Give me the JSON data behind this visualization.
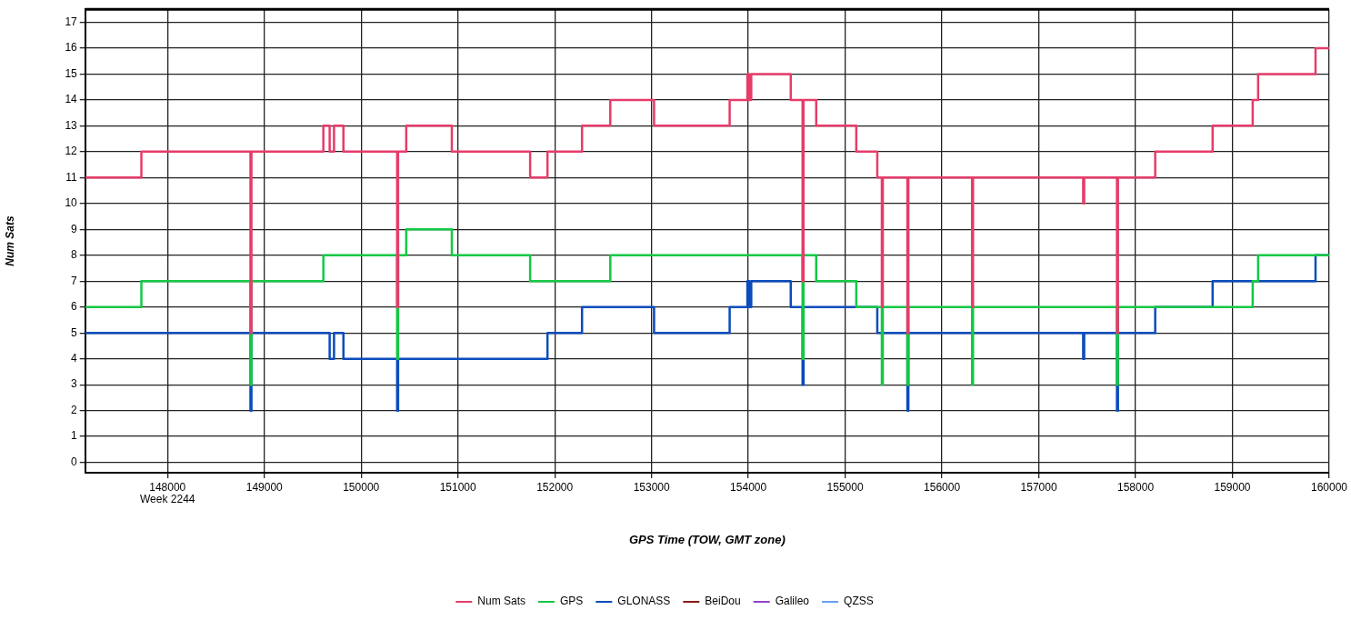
{
  "chart_data": {
    "type": "step",
    "ylabel": "Num Sats",
    "xlabel": "GPS Time (TOW, GMT zone)",
    "annotations": [
      "Week 2244"
    ],
    "xlim": [
      147150,
      160000
    ],
    "xticks": [
      148000,
      149000,
      150000,
      151000,
      152000,
      153000,
      154000,
      155000,
      156000,
      157000,
      158000,
      159000,
      160000
    ],
    "ylim": [
      -0.4,
      17.5
    ],
    "yticks": [
      0,
      1,
      2,
      3,
      4,
      5,
      6,
      7,
      8,
      9,
      10,
      11,
      12,
      13,
      14,
      15,
      16,
      17
    ],
    "grid": true,
    "legend": "bottom",
    "series": [
      {
        "name": "Num Sats",
        "color": "#e63c6a",
        "x": [
          147150,
          147730,
          148857,
          148867,
          149610,
          149675,
          149720,
          149817,
          150372,
          150382,
          150466,
          150937,
          151746,
          151925,
          152282,
          152574,
          153026,
          153807,
          153990,
          154010,
          154030,
          154438,
          154560,
          154570,
          154701,
          155115,
          155332,
          155379,
          155389,
          155643,
          155653,
          156311,
          156321,
          157459,
          157469,
          157808,
          157818,
          158203,
          158796,
          159210,
          159266,
          159859,
          160000
        ],
        "values": [
          11,
          12,
          5,
          12,
          13,
          12,
          13,
          12,
          6,
          12,
          13,
          12,
          11,
          12,
          13,
          14,
          13,
          14,
          15,
          14,
          15,
          14,
          7,
          14,
          13,
          12,
          11,
          6,
          11,
          5,
          11,
          6,
          11,
          10,
          11,
          5,
          11,
          12,
          13,
          14,
          15,
          16,
          16
        ]
      },
      {
        "name": "GPS",
        "color": "#14c846",
        "x": [
          147150,
          147730,
          148857,
          148867,
          149610,
          150372,
          150382,
          150466,
          150937,
          151746,
          152574,
          154560,
          154570,
          154701,
          155115,
          155379,
          155389,
          155643,
          155653,
          156311,
          156321,
          157808,
          157818,
          159210,
          159266,
          160000
        ],
        "values": [
          6,
          7,
          3,
          7,
          8,
          4,
          8,
          9,
          8,
          7,
          8,
          4,
          8,
          7,
          6,
          3,
          6,
          3,
          6,
          3,
          6,
          3,
          6,
          7,
          8,
          8
        ]
      },
      {
        "name": "GLONASS",
        "color": "#0a4cbc",
        "x": [
          147150,
          148857,
          148867,
          149675,
          149720,
          149817,
          150372,
          150382,
          151925,
          152282,
          153026,
          153807,
          153990,
          154010,
          154030,
          154438,
          154560,
          154570,
          155332,
          155643,
          155653,
          157459,
          157469,
          157808,
          157818,
          158203,
          158796,
          159859,
          160000
        ],
        "values": [
          5,
          2,
          5,
          4,
          5,
          4,
          2,
          4,
          5,
          6,
          5,
          6,
          7,
          6,
          7,
          6,
          3,
          6,
          5,
          2,
          5,
          4,
          5,
          2,
          5,
          6,
          7,
          8,
          8
        ]
      },
      {
        "name": "BeiDou",
        "color": "#8b1a1a"
      },
      {
        "name": "Galileo",
        "color": "#8e44c8"
      },
      {
        "name": "QZSS",
        "color": "#6a9ff5"
      }
    ]
  }
}
